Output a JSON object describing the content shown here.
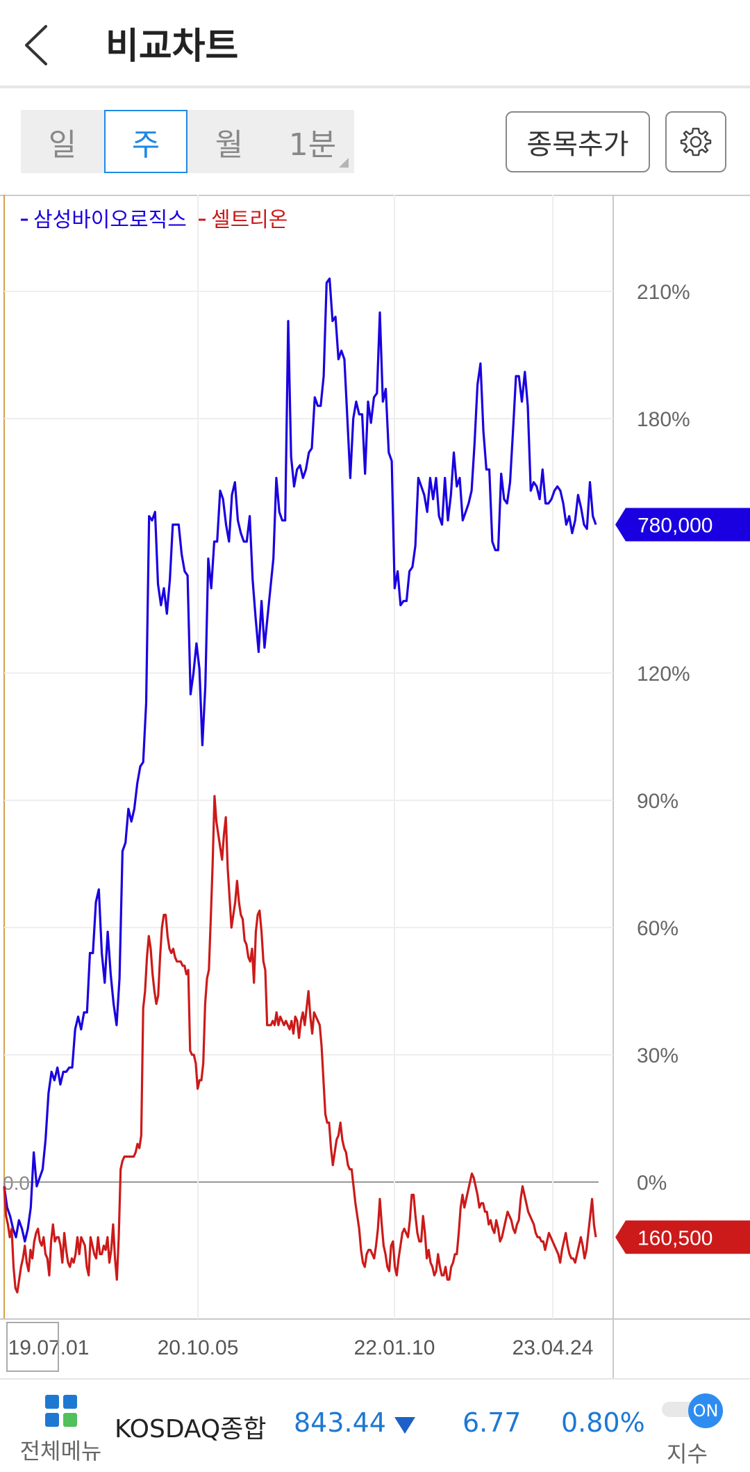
{
  "header": {
    "title": "비교차트"
  },
  "tabs": [
    {
      "label": "일",
      "active": false
    },
    {
      "label": "주",
      "active": true
    },
    {
      "label": "월",
      "active": false
    },
    {
      "label": "1분",
      "active": false
    }
  ],
  "toolbar": {
    "add_stock_label": "종목추가",
    "settings_icon": "gear-icon"
  },
  "chart_data": {
    "type": "line",
    "x_tick_labels": [
      "19.07.01",
      "20.10.05",
      "22.01.10",
      "23.04.24"
    ],
    "y_tick_labels": [
      "210%",
      "180%",
      "120%",
      "90%",
      "60%",
      "30%",
      "0%"
    ],
    "y_range": [
      -32,
      220
    ],
    "zero_label": "0.0",
    "grid": true,
    "legend_position": "top-left",
    "series": [
      {
        "name": "삼성바이오로직스",
        "color": "#1a00e0",
        "last_price_label": "780,000",
        "values": [
          -1,
          -6,
          -8,
          -11,
          -13,
          -9,
          -11,
          -14,
          -11,
          -6,
          7,
          -1,
          1,
          3,
          10,
          21,
          26,
          24,
          27,
          23,
          26,
          26,
          27,
          27,
          36,
          39,
          36,
          40,
          40,
          54,
          54,
          66,
          69,
          54,
          47,
          59,
          49,
          42,
          37,
          48,
          78,
          80,
          88,
          85,
          88,
          94,
          98,
          99,
          113,
          157,
          156,
          158,
          141,
          136,
          140,
          134,
          142,
          155,
          155,
          155,
          148,
          144,
          143,
          115,
          120,
          127,
          121,
          103,
          117,
          147,
          140,
          151,
          151,
          163,
          161,
          155,
          151,
          162,
          165,
          156,
          153,
          151,
          151,
          157,
          142,
          133,
          125,
          137,
          126,
          133,
          140,
          147,
          166,
          158,
          156,
          156,
          203,
          171,
          164,
          168,
          169,
          166,
          168,
          172,
          173,
          185,
          183,
          183,
          190,
          212,
          213,
          203,
          204,
          194,
          196,
          194,
          180,
          166,
          180,
          184,
          181,
          181,
          167,
          184,
          179,
          185,
          186,
          205,
          184,
          187,
          172,
          170,
          140,
          144,
          136,
          137,
          137,
          144,
          145,
          150,
          166,
          164,
          162,
          158,
          166,
          161,
          166,
          157,
          155,
          166,
          156,
          162,
          172,
          164,
          166,
          156,
          158,
          160,
          163,
          174,
          188,
          193,
          177,
          168,
          168,
          151,
          149,
          149,
          167,
          161,
          160,
          165,
          177,
          190,
          190,
          184,
          191,
          183,
          163,
          165,
          164,
          161,
          168,
          160,
          160,
          161,
          163,
          164,
          163,
          160,
          155,
          157,
          153,
          156,
          162,
          159,
          155,
          154,
          165,
          157,
          155
        ]
      },
      {
        "name": "셀트리온",
        "color": "#cc1a1a",
        "last_price_label": "160,500",
        "values": [
          -1,
          -8,
          -10,
          -13,
          -11,
          -20,
          -25,
          -26,
          -23,
          -20,
          -18,
          -15,
          -19,
          -21,
          -16,
          -18,
          -14,
          -12,
          -11,
          -14,
          -15,
          -13,
          -17,
          -18,
          -22,
          -14,
          -10,
          -14,
          -13,
          -13,
          -15,
          -19,
          -12,
          -16,
          -19,
          -20,
          -18,
          -19,
          -17,
          -13,
          -17,
          -13,
          -14,
          -15,
          -20,
          -22,
          -13,
          -15,
          -17,
          -18,
          -13,
          -17,
          -17,
          -15,
          -16,
          -13,
          -19,
          -16,
          -10,
          -18,
          -23,
          -13,
          3,
          5,
          6,
          6,
          6,
          6,
          6,
          6,
          7,
          9,
          8,
          11,
          41,
          45,
          53,
          58,
          55,
          49,
          45,
          42,
          44,
          53,
          60,
          63,
          63,
          58,
          55,
          54,
          55,
          53,
          52,
          52,
          52,
          51,
          51,
          49,
          50,
          31,
          30,
          30,
          28,
          22,
          24,
          24,
          28,
          42,
          48,
          50,
          62,
          75,
          91,
          85,
          82,
          79,
          76,
          82,
          86,
          74,
          67,
          60,
          63,
          66,
          71,
          66,
          63,
          62,
          57,
          56,
          53,
          52,
          55,
          47,
          59,
          63,
          64,
          59,
          52,
          50,
          37,
          37,
          37,
          38,
          37,
          40,
          37,
          39,
          38,
          37,
          38,
          37,
          36,
          38,
          35,
          39,
          38,
          34,
          38,
          40,
          37,
          41,
          45,
          39,
          35,
          40,
          39,
          38,
          37,
          32,
          24,
          16,
          14,
          14,
          8,
          4,
          7,
          10,
          11,
          14,
          10,
          8,
          7,
          4,
          3,
          3,
          -1,
          -5,
          -8,
          -11,
          -16,
          -19,
          -20,
          -17,
          -16,
          -16,
          -17,
          -18,
          -15,
          -11,
          -4,
          -10,
          -15,
          -17,
          -20,
          -21,
          -15,
          -14,
          -20,
          -22,
          -18,
          -15,
          -12,
          -11,
          -12,
          -13,
          -9,
          -3,
          -3,
          -8,
          -12,
          -14,
          -14,
          -8,
          -12,
          -18,
          -16,
          -19,
          -20,
          -22,
          -21,
          -17,
          -20,
          -22,
          -22,
          -20,
          -23,
          -23,
          -20,
          -19,
          -17,
          -17,
          -12,
          -6,
          -3,
          -6,
          -4,
          -2,
          0,
          2,
          1,
          -1,
          -3,
          -6,
          -5,
          -5,
          -7,
          -7,
          -10,
          -9,
          -11,
          -12,
          -9,
          -11,
          -14,
          -13,
          -11,
          -9,
          -7,
          -8,
          -9,
          -11,
          -12,
          -10,
          -9,
          -4,
          -1,
          -3,
          -5,
          -7,
          -8,
          -9,
          -10,
          -12,
          -13,
          -13,
          -14,
          -14,
          -16,
          -14,
          -12,
          -13,
          -14,
          -15,
          -16,
          -17,
          -19,
          -16,
          -14,
          -12,
          -15,
          -17,
          -18,
          -18,
          -19,
          -17,
          -15,
          -13,
          -15,
          -18,
          -16,
          -12,
          -8,
          -4,
          -10,
          -13
        ]
      }
    ]
  },
  "bottom_bar": {
    "menu_label": "전체메뉴",
    "index_name": "KOSDAQ종합",
    "index_value": "843.44",
    "index_change": "6.77",
    "index_change_rate": "0.80%",
    "index_direction": "down",
    "toggle_state": "ON",
    "toggle_label": "지수"
  }
}
